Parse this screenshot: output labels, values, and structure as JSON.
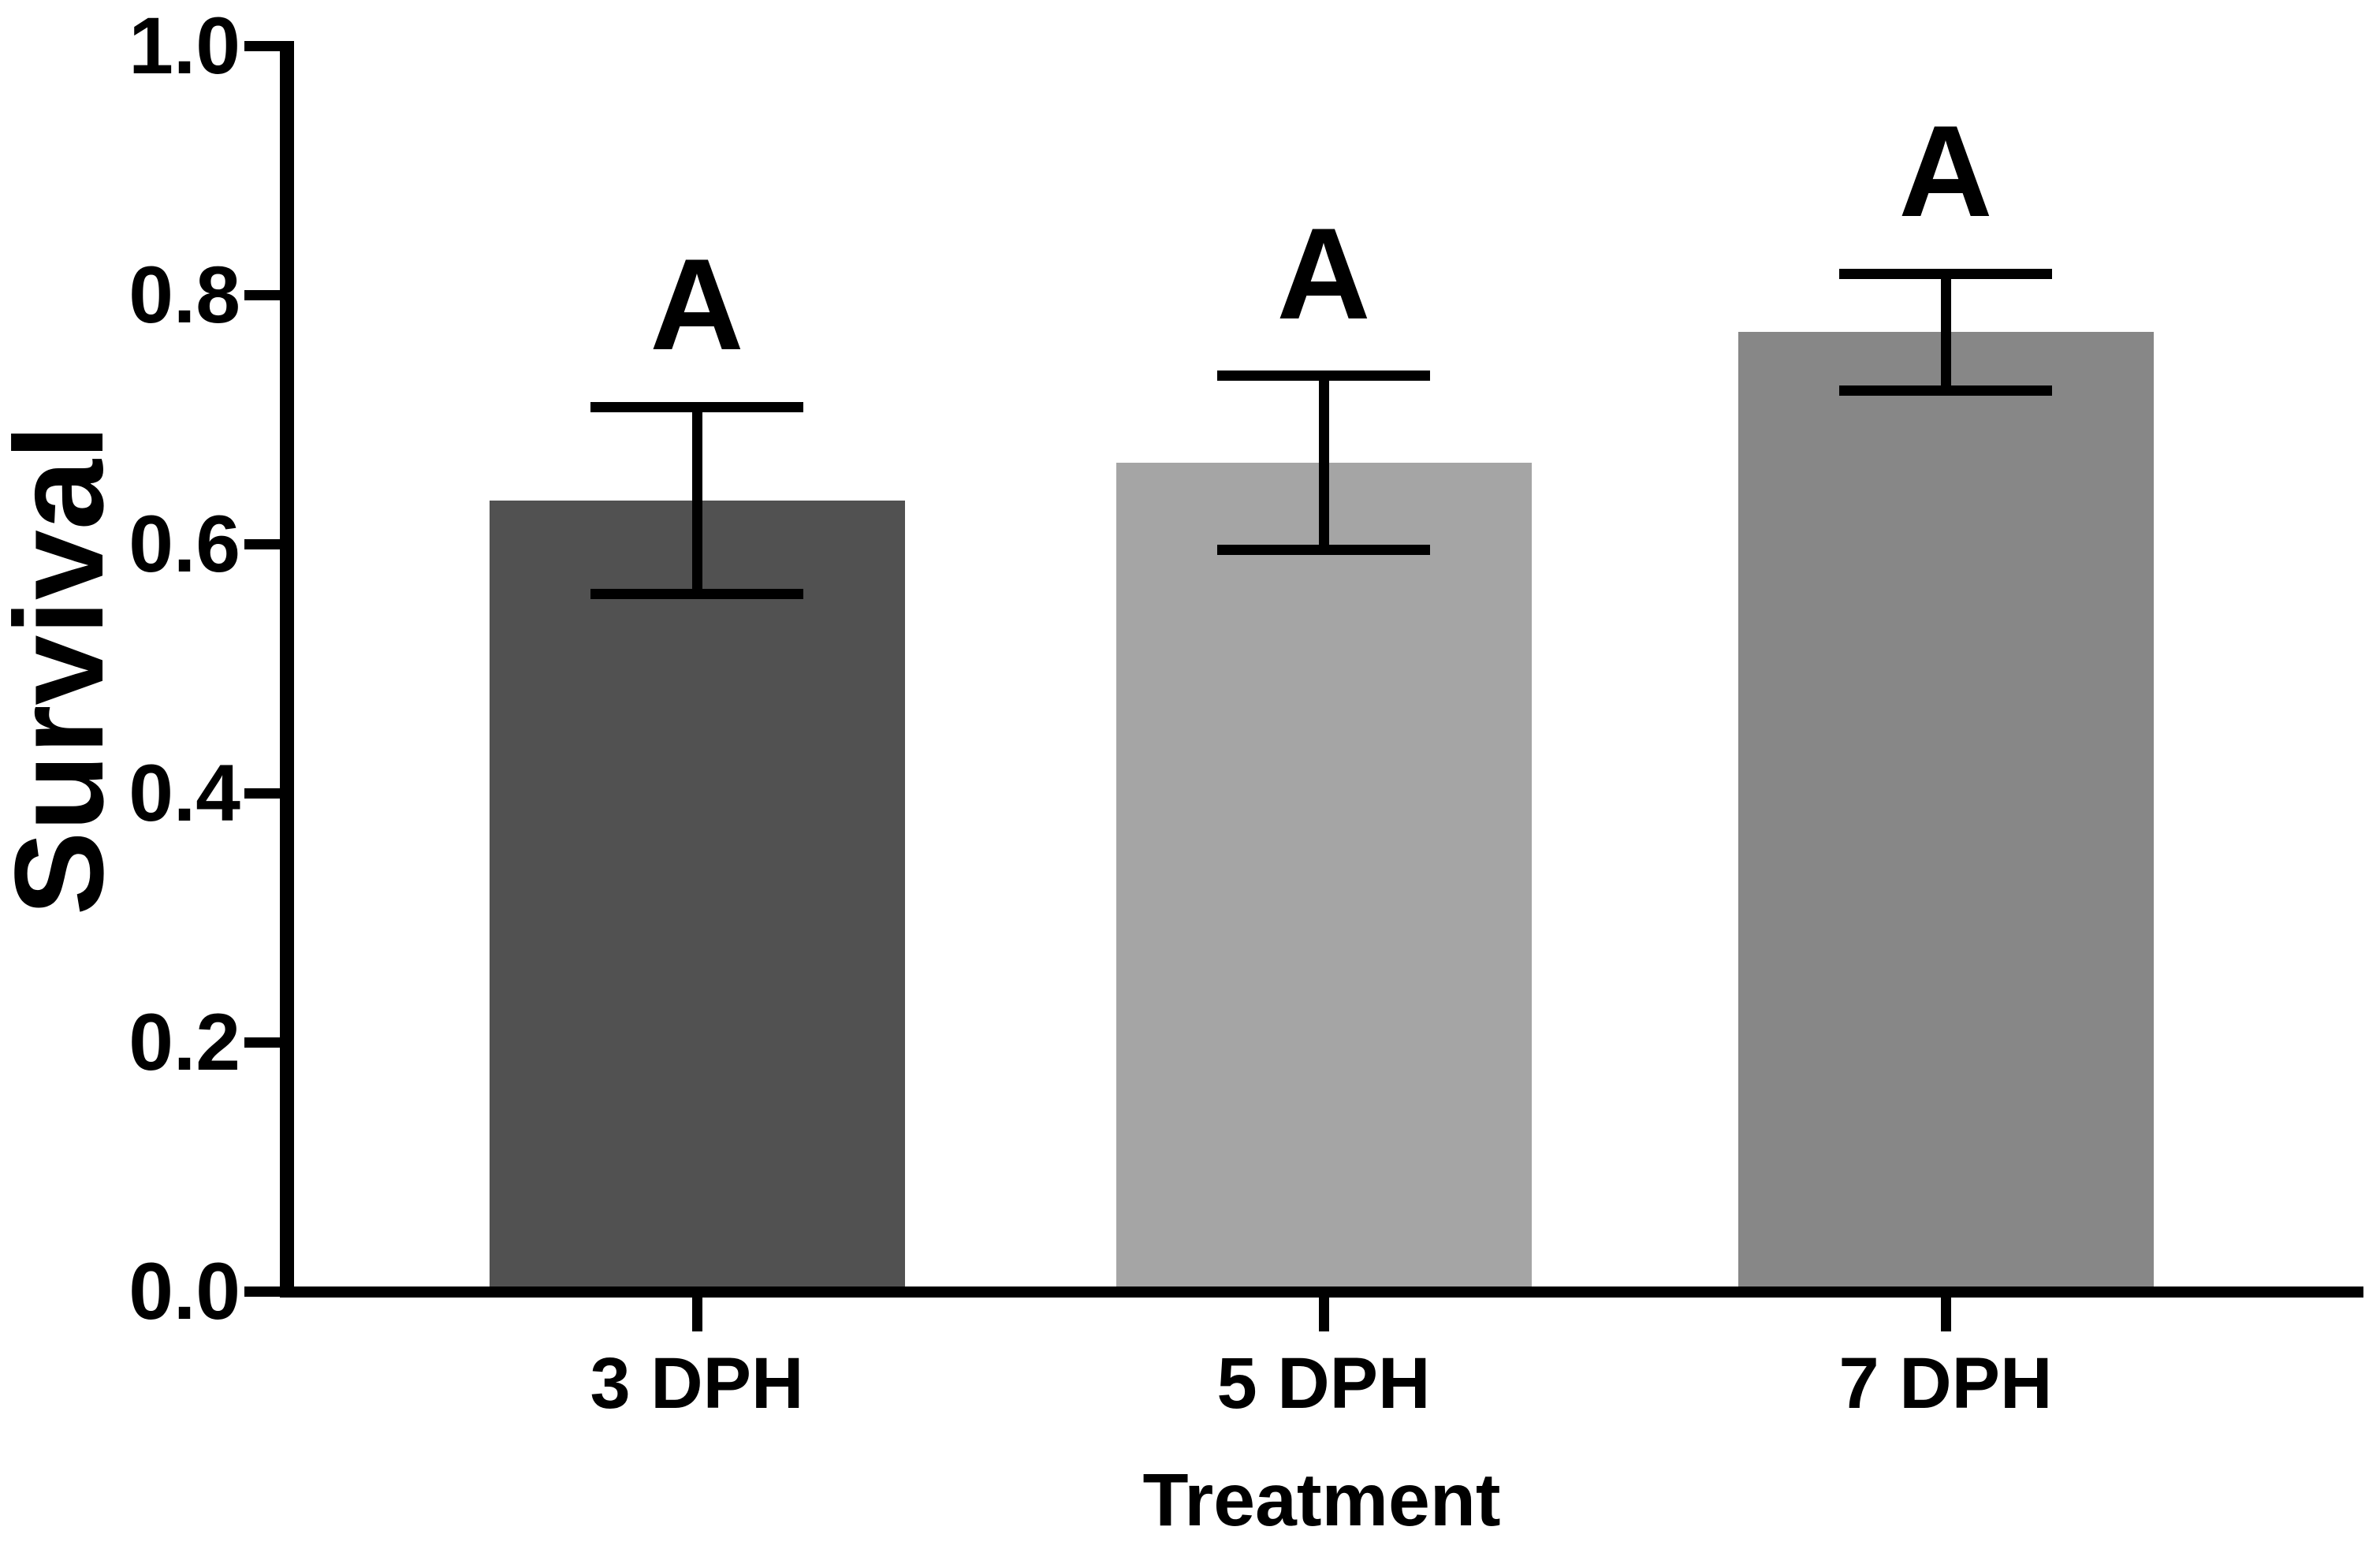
{
  "figure": {
    "background": "#ffffff",
    "text_color": "#000000"
  },
  "chart_data": {
    "type": "bar",
    "title": "",
    "xlabel": "Treatment",
    "ylabel": "Survival",
    "ylim": [
      0.0,
      1.0
    ],
    "yticks": [
      0.0,
      0.2,
      0.4,
      0.6,
      0.8,
      1.0
    ],
    "ytick_labels": [
      "0.0",
      "0.2",
      "0.4",
      "0.6",
      "0.8",
      "1.0"
    ],
    "grid": false,
    "legend": "none",
    "categories": [
      "3 DPH",
      "5 DPH",
      "7 DPH"
    ],
    "values": [
      0.635,
      0.665,
      0.77
    ],
    "errors_plus": [
      0.075,
      0.07,
      0.047
    ],
    "errors_minus": [
      0.075,
      0.07,
      0.047
    ],
    "significance_letters": [
      "A",
      "A",
      "A"
    ],
    "bar_colors": [
      "#515151",
      "#a5a5a5",
      "#878787"
    ],
    "axis_color": "#000000",
    "error_bar_color": "#000000"
  }
}
